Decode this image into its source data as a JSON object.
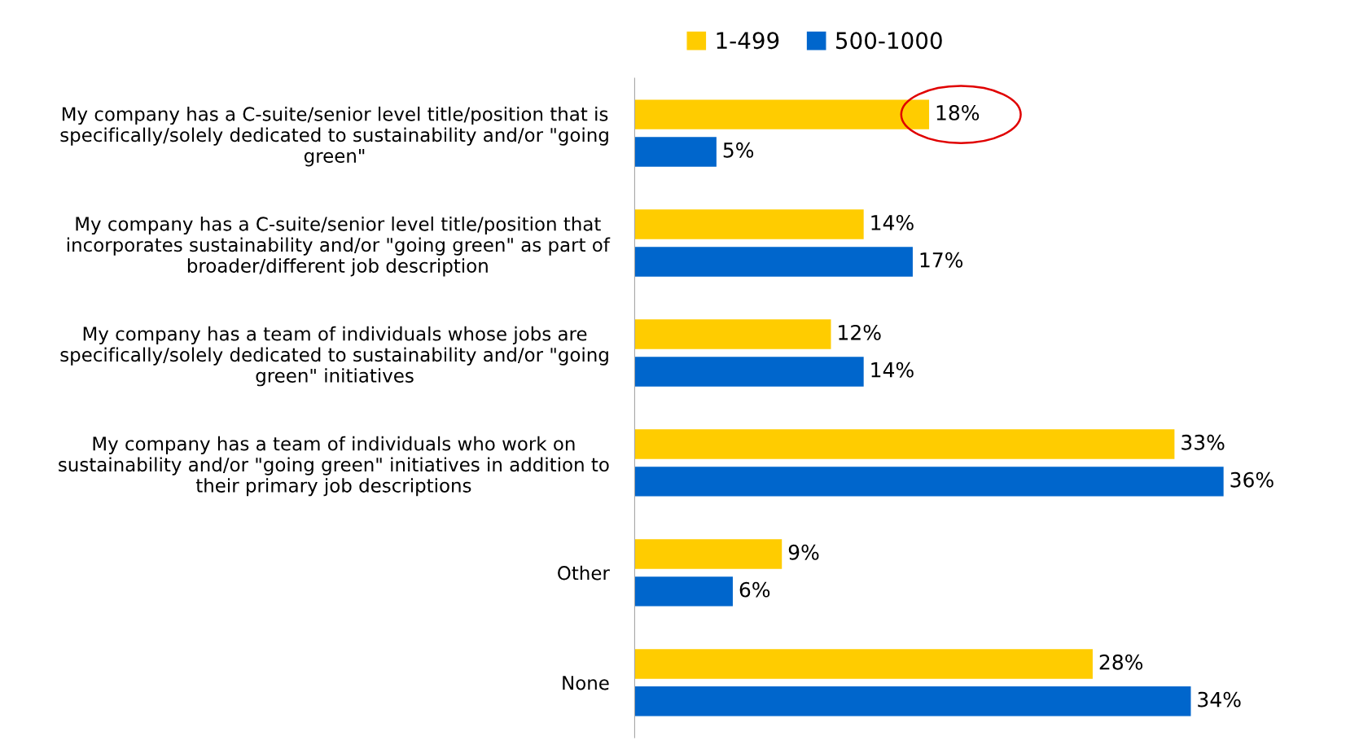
{
  "chart_data": {
    "type": "bar",
    "orientation": "horizontal",
    "legend": "top",
    "grid": false,
    "categories": [
      "My company has a C-suite/senior level title/position that is\nspecifically/solely dedicated to sustainability and/or \"going\ngreen\"",
      "My company has a C-suite/senior level title/position that\nincorporates sustainability and/or \"going green\" as part of\nbroader/different job description",
      "My company has a team of individuals whose jobs are\nspecifically/solely dedicated to sustainability and/or \"going\ngreen\" initiatives",
      "My company has a team of individuals who work on\nsustainability and/or \"going green\" initiatives in addition to\ntheir primary job descriptions",
      "Other",
      "None"
    ],
    "series": [
      {
        "name": "1-499",
        "color": "#ffcc00",
        "values": [
          18,
          14,
          12,
          33,
          9,
          28
        ],
        "value_labels": [
          "18%",
          "14%",
          "12%",
          "33%",
          "9%",
          "28%"
        ]
      },
      {
        "name": "500-1000",
        "color": "#0066cc",
        "values": [
          5,
          17,
          14,
          36,
          6,
          34
        ],
        "value_labels": [
          "5%",
          "17%",
          "14%",
          "36%",
          "6%",
          "34%"
        ]
      }
    ]
  }
}
